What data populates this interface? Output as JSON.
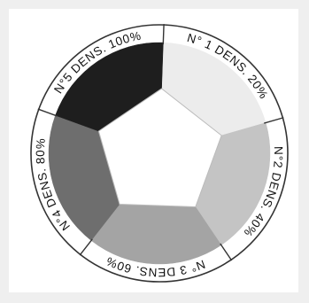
{
  "diagram": {
    "segments": [
      {
        "number_label": "N° 1",
        "density_label": "DENS. 20%",
        "density": 0.2,
        "color": "#ececec"
      },
      {
        "number_label": "N°2",
        "density_label": "DENS. 40%",
        "density": 0.4,
        "color": "#c4c4c4"
      },
      {
        "number_label": "N° 3",
        "density_label": "DENS. 60%",
        "density": 0.6,
        "color": "#a4a4a4"
      },
      {
        "number_label": "N°4",
        "density_label": "DENS. 80%",
        "density": 0.8,
        "color": "#6e6e6e"
      },
      {
        "number_label": "N°5",
        "density_label": "DENS. 100%",
        "density": 1.0,
        "color": "#1e1e1e"
      }
    ],
    "center_color": "#ffffff",
    "ring_color": "#ffffff",
    "outline_color": "#333333"
  }
}
